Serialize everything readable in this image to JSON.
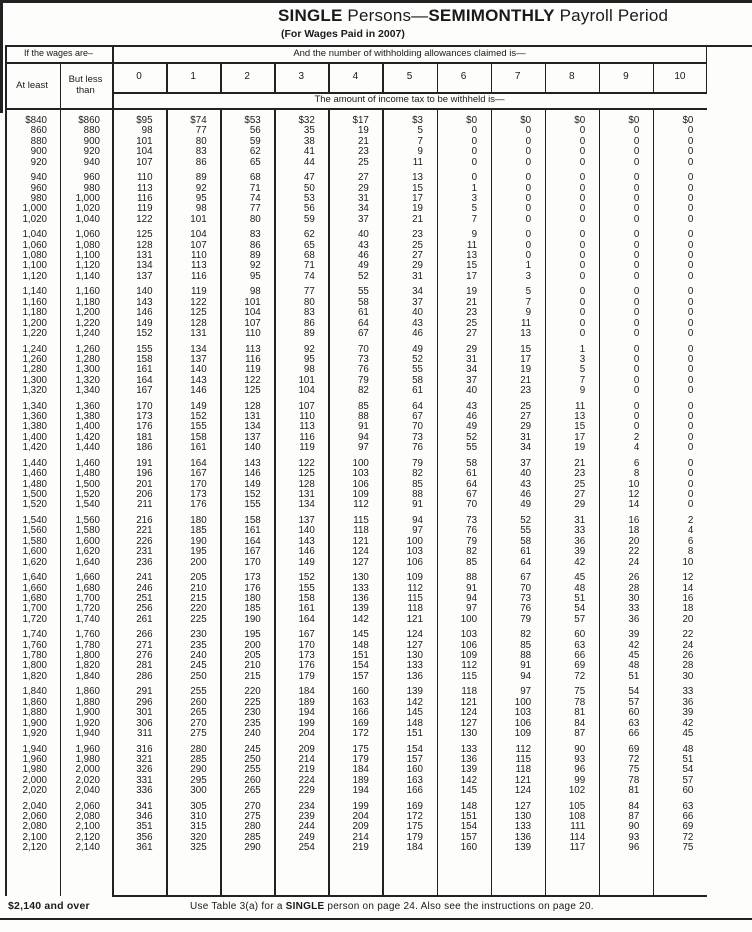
{
  "title": {
    "bold1": "SINGLE",
    "regular1": " Persons—",
    "bold2": "SEMIMONTHLY",
    "regular2": " Payroll Period"
  },
  "subtitle": "(For Wages Paid in 2007)",
  "table": {
    "wages_label": "If the wages are–",
    "allowances_label": "And the number of withholding allowances claimed is—",
    "at_least_label": "At least",
    "but_less_than_label": "But less than",
    "allowance_columns": [
      "0",
      "1",
      "2",
      "3",
      "4",
      "5",
      "6",
      "7",
      "8",
      "9",
      "10"
    ],
    "amount_label": "The amount of income tax to be withheld is—",
    "groups": [
      [
        [
          "$840",
          "$860",
          "$95",
          "$74",
          "$53",
          "$32",
          "$17",
          "$3",
          "$0",
          "$0",
          "$0",
          "$0",
          "$0"
        ],
        [
          "860",
          "880",
          "98",
          "77",
          "56",
          "35",
          "19",
          "5",
          "0",
          "0",
          "0",
          "0",
          "0"
        ],
        [
          "880",
          "900",
          "101",
          "80",
          "59",
          "38",
          "21",
          "7",
          "0",
          "0",
          "0",
          "0",
          "0"
        ],
        [
          "900",
          "920",
          "104",
          "83",
          "62",
          "41",
          "23",
          "9",
          "0",
          "0",
          "0",
          "0",
          "0"
        ],
        [
          "920",
          "940",
          "107",
          "86",
          "65",
          "44",
          "25",
          "11",
          "0",
          "0",
          "0",
          "0",
          "0"
        ]
      ],
      [
        [
          "940",
          "960",
          "110",
          "89",
          "68",
          "47",
          "27",
          "13",
          "0",
          "0",
          "0",
          "0",
          "0"
        ],
        [
          "960",
          "980",
          "113",
          "92",
          "71",
          "50",
          "29",
          "15",
          "1",
          "0",
          "0",
          "0",
          "0"
        ],
        [
          "980",
          "1,000",
          "116",
          "95",
          "74",
          "53",
          "31",
          "17",
          "3",
          "0",
          "0",
          "0",
          "0"
        ],
        [
          "1,000",
          "1,020",
          "119",
          "98",
          "77",
          "56",
          "34",
          "19",
          "5",
          "0",
          "0",
          "0",
          "0"
        ],
        [
          "1,020",
          "1,040",
          "122",
          "101",
          "80",
          "59",
          "37",
          "21",
          "7",
          "0",
          "0",
          "0",
          "0"
        ]
      ],
      [
        [
          "1,040",
          "1,060",
          "125",
          "104",
          "83",
          "62",
          "40",
          "23",
          "9",
          "0",
          "0",
          "0",
          "0"
        ],
        [
          "1,060",
          "1,080",
          "128",
          "107",
          "86",
          "65",
          "43",
          "25",
          "11",
          "0",
          "0",
          "0",
          "0"
        ],
        [
          "1,080",
          "1,100",
          "131",
          "110",
          "89",
          "68",
          "46",
          "27",
          "13",
          "0",
          "0",
          "0",
          "0"
        ],
        [
          "1,100",
          "1,120",
          "134",
          "113",
          "92",
          "71",
          "49",
          "29",
          "15",
          "1",
          "0",
          "0",
          "0"
        ],
        [
          "1,120",
          "1,140",
          "137",
          "116",
          "95",
          "74",
          "52",
          "31",
          "17",
          "3",
          "0",
          "0",
          "0"
        ]
      ],
      [
        [
          "1,140",
          "1,160",
          "140",
          "119",
          "98",
          "77",
          "55",
          "34",
          "19",
          "5",
          "0",
          "0",
          "0"
        ],
        [
          "1,160",
          "1,180",
          "143",
          "122",
          "101",
          "80",
          "58",
          "37",
          "21",
          "7",
          "0",
          "0",
          "0"
        ],
        [
          "1,180",
          "1,200",
          "146",
          "125",
          "104",
          "83",
          "61",
          "40",
          "23",
          "9",
          "0",
          "0",
          "0"
        ],
        [
          "1,200",
          "1,220",
          "149",
          "128",
          "107",
          "86",
          "64",
          "43",
          "25",
          "11",
          "0",
          "0",
          "0"
        ],
        [
          "1,220",
          "1,240",
          "152",
          "131",
          "110",
          "89",
          "67",
          "46",
          "27",
          "13",
          "0",
          "0",
          "0"
        ]
      ],
      [
        [
          "1,240",
          "1,260",
          "155",
          "134",
          "113",
          "92",
          "70",
          "49",
          "29",
          "15",
          "1",
          "0",
          "0"
        ],
        [
          "1,260",
          "1,280",
          "158",
          "137",
          "116",
          "95",
          "73",
          "52",
          "31",
          "17",
          "3",
          "0",
          "0"
        ],
        [
          "1,280",
          "1,300",
          "161",
          "140",
          "119",
          "98",
          "76",
          "55",
          "34",
          "19",
          "5",
          "0",
          "0"
        ],
        [
          "1,300",
          "1,320",
          "164",
          "143",
          "122",
          "101",
          "79",
          "58",
          "37",
          "21",
          "7",
          "0",
          "0"
        ],
        [
          "1,320",
          "1,340",
          "167",
          "146",
          "125",
          "104",
          "82",
          "61",
          "40",
          "23",
          "9",
          "0",
          "0"
        ]
      ],
      [
        [
          "1,340",
          "1,360",
          "170",
          "149",
          "128",
          "107",
          "85",
          "64",
          "43",
          "25",
          "11",
          "0",
          "0"
        ],
        [
          "1,360",
          "1,380",
          "173",
          "152",
          "131",
          "110",
          "88",
          "67",
          "46",
          "27",
          "13",
          "0",
          "0"
        ],
        [
          "1,380",
          "1,400",
          "176",
          "155",
          "134",
          "113",
          "91",
          "70",
          "49",
          "29",
          "15",
          "0",
          "0"
        ],
        [
          "1,400",
          "1,420",
          "181",
          "158",
          "137",
          "116",
          "94",
          "73",
          "52",
          "31",
          "17",
          "2",
          "0"
        ],
        [
          "1,420",
          "1,440",
          "186",
          "161",
          "140",
          "119",
          "97",
          "76",
          "55",
          "34",
          "19",
          "4",
          "0"
        ]
      ],
      [
        [
          "1,440",
          "1,460",
          "191",
          "164",
          "143",
          "122",
          "100",
          "79",
          "58",
          "37",
          "21",
          "6",
          "0"
        ],
        [
          "1,460",
          "1,480",
          "196",
          "167",
          "146",
          "125",
          "103",
          "82",
          "61",
          "40",
          "23",
          "8",
          "0"
        ],
        [
          "1,480",
          "1,500",
          "201",
          "170",
          "149",
          "128",
          "106",
          "85",
          "64",
          "43",
          "25",
          "10",
          "0"
        ],
        [
          "1,500",
          "1,520",
          "206",
          "173",
          "152",
          "131",
          "109",
          "88",
          "67",
          "46",
          "27",
          "12",
          "0"
        ],
        [
          "1,520",
          "1,540",
          "211",
          "176",
          "155",
          "134",
          "112",
          "91",
          "70",
          "49",
          "29",
          "14",
          "0"
        ]
      ],
      [
        [
          "1,540",
          "1,560",
          "216",
          "180",
          "158",
          "137",
          "115",
          "94",
          "73",
          "52",
          "31",
          "16",
          "2"
        ],
        [
          "1,560",
          "1,580",
          "221",
          "185",
          "161",
          "140",
          "118",
          "97",
          "76",
          "55",
          "33",
          "18",
          "4"
        ],
        [
          "1,580",
          "1,600",
          "226",
          "190",
          "164",
          "143",
          "121",
          "100",
          "79",
          "58",
          "36",
          "20",
          "6"
        ],
        [
          "1,600",
          "1,620",
          "231",
          "195",
          "167",
          "146",
          "124",
          "103",
          "82",
          "61",
          "39",
          "22",
          "8"
        ],
        [
          "1,620",
          "1,640",
          "236",
          "200",
          "170",
          "149",
          "127",
          "106",
          "85",
          "64",
          "42",
          "24",
          "10"
        ]
      ],
      [
        [
          "1,640",
          "1,660",
          "241",
          "205",
          "173",
          "152",
          "130",
          "109",
          "88",
          "67",
          "45",
          "26",
          "12"
        ],
        [
          "1,660",
          "1,680",
          "246",
          "210",
          "176",
          "155",
          "133",
          "112",
          "91",
          "70",
          "48",
          "28",
          "14"
        ],
        [
          "1,680",
          "1,700",
          "251",
          "215",
          "180",
          "158",
          "136",
          "115",
          "94",
          "73",
          "51",
          "30",
          "16"
        ],
        [
          "1,700",
          "1,720",
          "256",
          "220",
          "185",
          "161",
          "139",
          "118",
          "97",
          "76",
          "54",
          "33",
          "18"
        ],
        [
          "1,720",
          "1,740",
          "261",
          "225",
          "190",
          "164",
          "142",
          "121",
          "100",
          "79",
          "57",
          "36",
          "20"
        ]
      ],
      [
        [
          "1,740",
          "1,760",
          "266",
          "230",
          "195",
          "167",
          "145",
          "124",
          "103",
          "82",
          "60",
          "39",
          "22"
        ],
        [
          "1,760",
          "1,780",
          "271",
          "235",
          "200",
          "170",
          "148",
          "127",
          "106",
          "85",
          "63",
          "42",
          "24"
        ],
        [
          "1,780",
          "1,800",
          "276",
          "240",
          "205",
          "173",
          "151",
          "130",
          "109",
          "88",
          "66",
          "45",
          "26"
        ],
        [
          "1,800",
          "1,820",
          "281",
          "245",
          "210",
          "176",
          "154",
          "133",
          "112",
          "91",
          "69",
          "48",
          "28"
        ],
        [
          "1,820",
          "1,840",
          "286",
          "250",
          "215",
          "179",
          "157",
          "136",
          "115",
          "94",
          "72",
          "51",
          "30"
        ]
      ],
      [
        [
          "1,840",
          "1,860",
          "291",
          "255",
          "220",
          "184",
          "160",
          "139",
          "118",
          "97",
          "75",
          "54",
          "33"
        ],
        [
          "1,860",
          "1,880",
          "296",
          "260",
          "225",
          "189",
          "163",
          "142",
          "121",
          "100",
          "78",
          "57",
          "36"
        ],
        [
          "1,880",
          "1,900",
          "301",
          "265",
          "230",
          "194",
          "166",
          "145",
          "124",
          "103",
          "81",
          "60",
          "39"
        ],
        [
          "1,900",
          "1,920",
          "306",
          "270",
          "235",
          "199",
          "169",
          "148",
          "127",
          "106",
          "84",
          "63",
          "42"
        ],
        [
          "1,920",
          "1,940",
          "311",
          "275",
          "240",
          "204",
          "172",
          "151",
          "130",
          "109",
          "87",
          "66",
          "45"
        ]
      ],
      [
        [
          "1,940",
          "1,960",
          "316",
          "280",
          "245",
          "209",
          "175",
          "154",
          "133",
          "112",
          "90",
          "69",
          "48"
        ],
        [
          "1,960",
          "1,980",
          "321",
          "285",
          "250",
          "214",
          "179",
          "157",
          "136",
          "115",
          "93",
          "72",
          "51"
        ],
        [
          "1,980",
          "2,000",
          "326",
          "290",
          "255",
          "219",
          "184",
          "160",
          "139",
          "118",
          "96",
          "75",
          "54"
        ],
        [
          "2,000",
          "2,020",
          "331",
          "295",
          "260",
          "224",
          "189",
          "163",
          "142",
          "121",
          "99",
          "78",
          "57"
        ],
        [
          "2,020",
          "2,040",
          "336",
          "300",
          "265",
          "229",
          "194",
          "166",
          "145",
          "124",
          "102",
          "81",
          "60"
        ]
      ],
      [
        [
          "2,040",
          "2,060",
          "341",
          "305",
          "270",
          "234",
          "199",
          "169",
          "148",
          "127",
          "105",
          "84",
          "63"
        ],
        [
          "2,060",
          "2,080",
          "346",
          "310",
          "275",
          "239",
          "204",
          "172",
          "151",
          "130",
          "108",
          "87",
          "66"
        ],
        [
          "2,080",
          "2,100",
          "351",
          "315",
          "280",
          "244",
          "209",
          "175",
          "154",
          "133",
          "111",
          "90",
          "69"
        ],
        [
          "2,100",
          "2,120",
          "356",
          "320",
          "285",
          "249",
          "214",
          "179",
          "157",
          "136",
          "114",
          "93",
          "72"
        ],
        [
          "2,120",
          "2,140",
          "361",
          "325",
          "290",
          "254",
          "219",
          "184",
          "160",
          "139",
          "117",
          "96",
          "75"
        ]
      ]
    ]
  },
  "footer": {
    "over_label": "$2,140 and over",
    "note_pre": "Use Table 3(a) for a ",
    "note_bold": "SINGLE",
    "note_post": " person on page 24. Also see the instructions on page 20."
  },
  "colors": {
    "ink": "#1a1a1a",
    "paper": "#fdfdfc"
  }
}
